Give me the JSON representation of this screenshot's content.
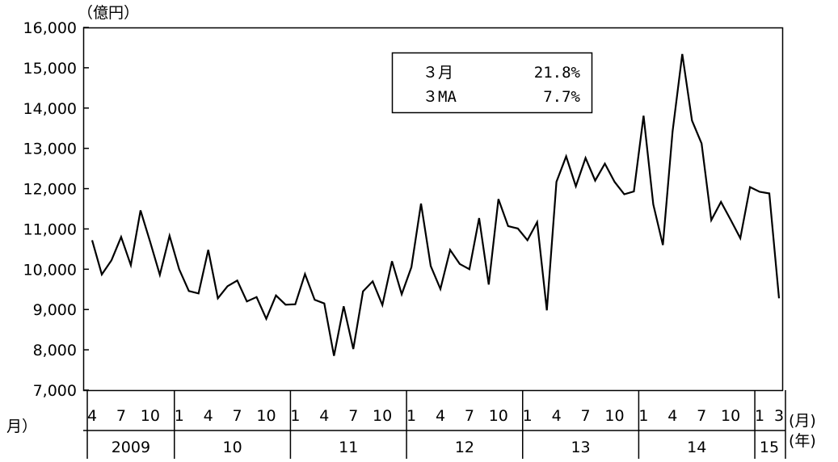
{
  "chart_data": {
    "type": "line",
    "title": "",
    "ylabel": "（億円）",
    "ylim": [
      7000,
      16000
    ],
    "y_ticks": [
      "7,000",
      "8,000",
      "9,000",
      "10,000",
      "11,000",
      "12,000",
      "13,000",
      "14,000",
      "15,000",
      "16,000"
    ],
    "grid": false,
    "x_unit_month": "(月)",
    "x_unit_year": "(年)",
    "x_left_label": "月）",
    "month_ticks": [
      {
        "label": "4",
        "i": 0
      },
      {
        "label": "7",
        "i": 3
      },
      {
        "label": "10",
        "i": 6
      },
      {
        "label": "1",
        "i": 9
      },
      {
        "label": "4",
        "i": 12
      },
      {
        "label": "7",
        "i": 15
      },
      {
        "label": "10",
        "i": 18
      },
      {
        "label": "1",
        "i": 21
      },
      {
        "label": "4",
        "i": 24
      },
      {
        "label": "7",
        "i": 27
      },
      {
        "label": "10",
        "i": 30
      },
      {
        "label": "1",
        "i": 33
      },
      {
        "label": "4",
        "i": 36
      },
      {
        "label": "7",
        "i": 39
      },
      {
        "label": "10",
        "i": 42
      },
      {
        "label": "1",
        "i": 45
      },
      {
        "label": "4",
        "i": 48
      },
      {
        "label": "7",
        "i": 51
      },
      {
        "label": "10",
        "i": 54
      },
      {
        "label": "1",
        "i": 57
      },
      {
        "label": "4",
        "i": 60
      },
      {
        "label": "7",
        "i": 63
      },
      {
        "label": "10",
        "i": 66
      },
      {
        "label": "1",
        "i": 69
      },
      {
        "label": "3",
        "i": 71
      }
    ],
    "years": [
      {
        "label": "2009",
        "start": 0,
        "end": 8
      },
      {
        "label": "10",
        "start": 9,
        "end": 20
      },
      {
        "label": "11",
        "start": 21,
        "end": 32
      },
      {
        "label": "12",
        "start": 33,
        "end": 44
      },
      {
        "label": "13",
        "start": 45,
        "end": 56
      },
      {
        "label": "14",
        "start": 57,
        "end": 68
      },
      {
        "label": "15",
        "start": 69,
        "end": 71
      }
    ],
    "series": [
      {
        "values": [
          10720,
          9870,
          10220,
          10800,
          10100,
          11460,
          10680,
          9860,
          10830,
          10000,
          9460,
          9400,
          10480,
          9280,
          9580,
          9720,
          9200,
          9310,
          8770,
          9350,
          9120,
          9130,
          9880,
          9240,
          9150,
          7850,
          9080,
          8020,
          9450,
          9700,
          9110,
          10200,
          9380,
          10050,
          11630,
          10080,
          9510,
          10480,
          10130,
          10000,
          11270,
          9620,
          11740,
          11070,
          11010,
          10720,
          11170,
          8980,
          12170,
          12800,
          12060,
          12760,
          12200,
          12620,
          12170,
          11860,
          11930,
          13810,
          11610,
          10600,
          13420,
          15340,
          13690,
          13120,
          11220,
          11670,
          11230,
          10770,
          12040,
          11920,
          11880,
          9280
        ]
      }
    ],
    "annotation": {
      "rows": [
        {
          "label": "３月",
          "value": "21.8%"
        },
        {
          "label": "３MA",
          "value": "7.7%"
        }
      ]
    }
  }
}
